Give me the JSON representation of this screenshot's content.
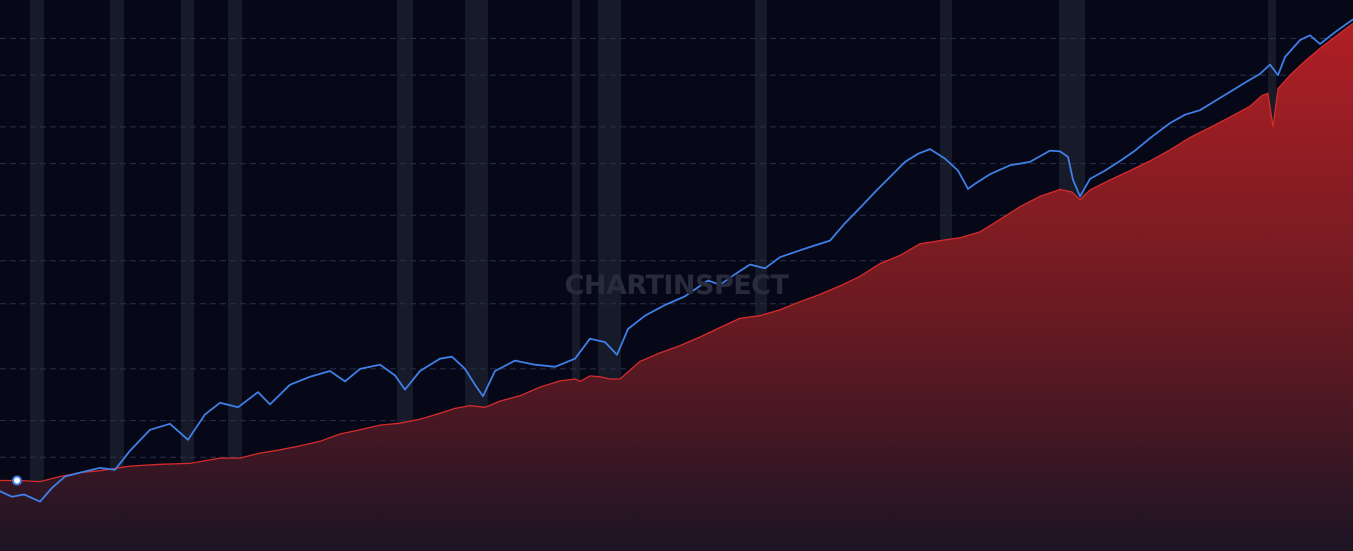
{
  "chart_data": {
    "type": "line",
    "title": "",
    "xlabel": "",
    "ylabel": "",
    "log_scale": true,
    "grid": {
      "horizontal": true,
      "vertical": false,
      "style": "dashed"
    },
    "x_range": [
      0,
      1353
    ],
    "y_range": [
      1,
      50
    ],
    "recession_bands": [
      [
        30,
        44
      ],
      [
        110,
        124
      ],
      [
        181,
        194
      ],
      [
        228,
        242
      ],
      [
        397,
        413
      ],
      [
        465,
        488
      ],
      [
        572,
        580
      ],
      [
        598,
        621
      ],
      [
        755,
        767
      ],
      [
        940,
        952
      ],
      [
        1059,
        1085
      ],
      [
        1268,
        1276
      ]
    ],
    "series": [
      {
        "kind": "line",
        "color": "#3f7fe6",
        "points": [
          [
            0,
            1.15
          ],
          [
            12,
            1.1
          ],
          [
            24,
            1.12
          ],
          [
            40,
            1.06
          ],
          [
            52,
            1.18
          ],
          [
            65,
            1.29
          ],
          [
            80,
            1.33
          ],
          [
            100,
            1.38
          ],
          [
            115,
            1.36
          ],
          [
            130,
            1.58
          ],
          [
            150,
            1.86
          ],
          [
            170,
            1.95
          ],
          [
            188,
            1.72
          ],
          [
            205,
            2.1
          ],
          [
            220,
            2.3
          ],
          [
            238,
            2.22
          ],
          [
            258,
            2.5
          ],
          [
            270,
            2.27
          ],
          [
            290,
            2.65
          ],
          [
            310,
            2.82
          ],
          [
            330,
            2.95
          ],
          [
            345,
            2.72
          ],
          [
            360,
            3.0
          ],
          [
            380,
            3.1
          ],
          [
            395,
            2.85
          ],
          [
            405,
            2.55
          ],
          [
            420,
            2.95
          ],
          [
            440,
            3.25
          ],
          [
            452,
            3.3
          ],
          [
            465,
            3.0
          ],
          [
            475,
            2.65
          ],
          [
            483,
            2.42
          ],
          [
            495,
            2.95
          ],
          [
            515,
            3.2
          ],
          [
            535,
            3.1
          ],
          [
            555,
            3.05
          ],
          [
            575,
            3.25
          ],
          [
            590,
            3.8
          ],
          [
            605,
            3.7
          ],
          [
            617,
            3.35
          ],
          [
            628,
            4.1
          ],
          [
            645,
            4.55
          ],
          [
            665,
            4.95
          ],
          [
            685,
            5.3
          ],
          [
            700,
            5.75
          ],
          [
            708,
            6.0
          ],
          [
            720,
            5.8
          ],
          [
            735,
            6.3
          ],
          [
            750,
            6.8
          ],
          [
            765,
            6.6
          ],
          [
            780,
            7.2
          ],
          [
            800,
            7.6
          ],
          [
            815,
            7.9
          ],
          [
            830,
            8.2
          ],
          [
            845,
            9.4
          ],
          [
            860,
            10.6
          ],
          [
            875,
            12.0
          ],
          [
            890,
            13.5
          ],
          [
            905,
            15.2
          ],
          [
            918,
            16.2
          ],
          [
            930,
            16.8
          ],
          [
            945,
            15.6
          ],
          [
            958,
            14.2
          ],
          [
            968,
            12.3
          ],
          [
            975,
            12.8
          ],
          [
            990,
            13.8
          ],
          [
            1010,
            14.8
          ],
          [
            1030,
            15.2
          ],
          [
            1050,
            16.6
          ],
          [
            1060,
            16.5
          ],
          [
            1068,
            15.8
          ],
          [
            1073,
            13.2
          ],
          [
            1080,
            11.6
          ],
          [
            1090,
            13.3
          ],
          [
            1105,
            14.2
          ],
          [
            1120,
            15.3
          ],
          [
            1135,
            16.6
          ],
          [
            1150,
            18.3
          ],
          [
            1170,
            20.6
          ],
          [
            1185,
            22.0
          ],
          [
            1200,
            22.8
          ],
          [
            1215,
            24.5
          ],
          [
            1230,
            26.3
          ],
          [
            1245,
            28.3
          ],
          [
            1260,
            30.3
          ],
          [
            1270,
            32.6
          ],
          [
            1278,
            30.0
          ],
          [
            1285,
            34.6
          ],
          [
            1300,
            39.5
          ],
          [
            1310,
            41.0
          ],
          [
            1320,
            38.3
          ],
          [
            1335,
            42.0
          ],
          [
            1353,
            46.5
          ]
        ]
      },
      {
        "kind": "area",
        "color": "#d42b2b",
        "points": [
          [
            0,
            1.25
          ],
          [
            20,
            1.25
          ],
          [
            40,
            1.24
          ],
          [
            60,
            1.29
          ],
          [
            80,
            1.33
          ],
          [
            100,
            1.35
          ],
          [
            130,
            1.4
          ],
          [
            160,
            1.42
          ],
          [
            190,
            1.43
          ],
          [
            220,
            1.49
          ],
          [
            240,
            1.49
          ],
          [
            260,
            1.55
          ],
          [
            280,
            1.59
          ],
          [
            300,
            1.64
          ],
          [
            320,
            1.7
          ],
          [
            340,
            1.8
          ],
          [
            360,
            1.86
          ],
          [
            380,
            1.93
          ],
          [
            400,
            1.96
          ],
          [
            420,
            2.02
          ],
          [
            440,
            2.12
          ],
          [
            455,
            2.2
          ],
          [
            470,
            2.25
          ],
          [
            485,
            2.22
          ],
          [
            500,
            2.33
          ],
          [
            520,
            2.43
          ],
          [
            540,
            2.6
          ],
          [
            560,
            2.73
          ],
          [
            575,
            2.77
          ],
          [
            580,
            2.72
          ],
          [
            590,
            2.84
          ],
          [
            600,
            2.82
          ],
          [
            610,
            2.77
          ],
          [
            620,
            2.77
          ],
          [
            640,
            3.18
          ],
          [
            660,
            3.4
          ],
          [
            680,
            3.6
          ],
          [
            700,
            3.85
          ],
          [
            720,
            4.15
          ],
          [
            740,
            4.46
          ],
          [
            760,
            4.55
          ],
          [
            780,
            4.77
          ],
          [
            800,
            5.08
          ],
          [
            820,
            5.38
          ],
          [
            840,
            5.75
          ],
          [
            860,
            6.2
          ],
          [
            880,
            6.85
          ],
          [
            900,
            7.3
          ],
          [
            920,
            8.0
          ],
          [
            940,
            8.2
          ],
          [
            960,
            8.38
          ],
          [
            980,
            8.78
          ],
          [
            1000,
            9.68
          ],
          [
            1020,
            10.7
          ],
          [
            1040,
            11.6
          ],
          [
            1060,
            12.25
          ],
          [
            1072,
            12.0
          ],
          [
            1080,
            11.3
          ],
          [
            1090,
            12.2
          ],
          [
            1110,
            13.2
          ],
          [
            1130,
            14.2
          ],
          [
            1150,
            15.3
          ],
          [
            1170,
            16.7
          ],
          [
            1190,
            18.4
          ],
          [
            1210,
            19.9
          ],
          [
            1230,
            21.6
          ],
          [
            1250,
            23.5
          ],
          [
            1262,
            25.6
          ],
          [
            1268,
            26.0
          ],
          [
            1273,
            20.0
          ],
          [
            1278,
            27.0
          ],
          [
            1290,
            30.0
          ],
          [
            1305,
            33.5
          ],
          [
            1320,
            37.0
          ],
          [
            1335,
            40.5
          ],
          [
            1353,
            45.0
          ]
        ]
      }
    ],
    "start_marker": {
      "x": 17,
      "y": 1.25
    }
  },
  "watermark": "CHARTINSPECT",
  "colors": {
    "background": "#060818",
    "grid": "#2a3048",
    "band": "#1a1d2d"
  }
}
